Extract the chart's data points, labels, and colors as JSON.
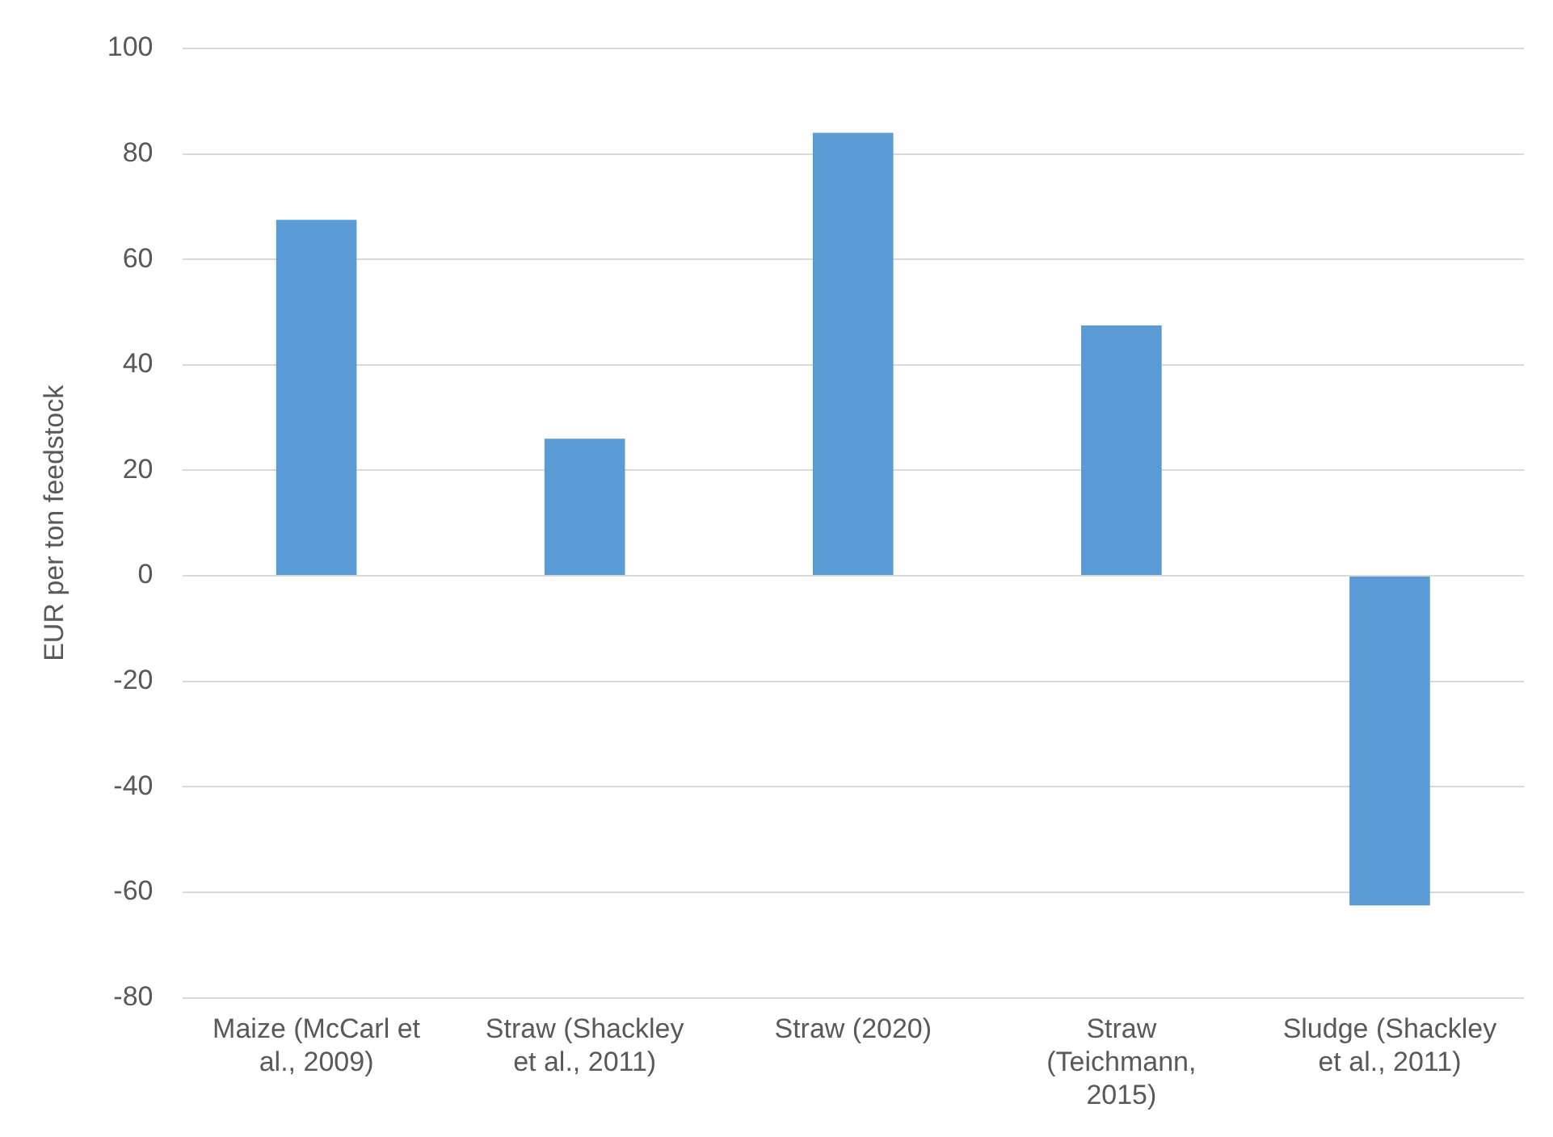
{
  "chart_data": {
    "type": "bar",
    "ylabel": "EUR per ton feedstock",
    "categories": [
      "Maize (McCarl et al., 2009)",
      "Straw (Shackley et al., 2011)",
      "Straw (2020)",
      "Straw (Teichmann, 2015)",
      "Sludge (Shackley et al., 2011)"
    ],
    "values": [
      67.5,
      26,
      84,
      47.5,
      -62.5
    ],
    "color": "#5b9bd5",
    "ylim": [
      -80,
      100
    ],
    "yticks": [
      -80,
      -60,
      -40,
      -20,
      0,
      20,
      40,
      60,
      80,
      100
    ],
    "grid": "y",
    "legend": false
  }
}
